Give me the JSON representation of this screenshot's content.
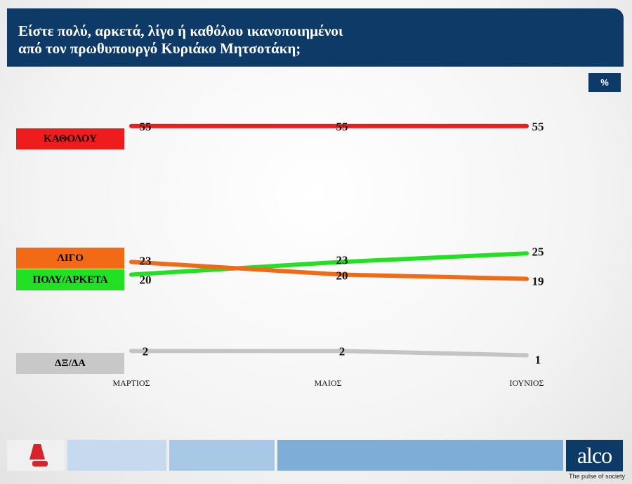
{
  "header": {
    "title_line1": "Είστε πολύ, αρκετά, λίγο ή καθόλου ικανοποιημένοι",
    "title_line2": "από τον πρωθυπουργό Κυριάκο Μητσοτάκη;"
  },
  "unit_label": "%",
  "chart_data": {
    "type": "line",
    "title": "Είστε πολύ, αρκετά, λίγο ή καθόλου ικανοποιημένοι από τον πρωθυπουργό Κυριάκο Μητσοτάκη;",
    "categories": [
      "ΜΑΡΤΙΟΣ",
      "ΜΑΙΟΣ",
      "ΙΟΥΝΙΟΣ"
    ],
    "unit": "%",
    "series": [
      {
        "name": "ΚΑΘΟΛΟΥ",
        "values": [
          55,
          55,
          55
        ],
        "color": "#ee1c1c"
      },
      {
        "name": "ΛΙΓΟ",
        "values": [
          23,
          20,
          19
        ],
        "color": "#f26a15"
      },
      {
        "name": "ΠΟΛΥ/ΑΡΚΕΤΑ",
        "values": [
          20,
          23,
          25
        ],
        "color": "#22e022"
      },
      {
        "name": "ΔΞ/ΔΑ",
        "values": [
          2,
          2,
          1
        ],
        "color": "#c4c4c4"
      }
    ],
    "legend_placement": "left",
    "grid": false
  },
  "legend": [
    {
      "label": "ΚΑΘΟΛΟΥ",
      "color": "#ee1c1c"
    },
    {
      "label": "ΛΙΓΟ",
      "color": "#f26a15"
    },
    {
      "label": "ΠΟΛΥ/ΑΡΚΕΤΑ",
      "color": "#22e022"
    },
    {
      "label": "ΔΞ/ΔΑ",
      "color": "#c8c8c8"
    }
  ],
  "footer": {
    "logo_text": "alco",
    "tagline": "The pulse of society",
    "colors": [
      "#c6d9ef",
      "#a9c8e6",
      "#7eadd8"
    ]
  }
}
